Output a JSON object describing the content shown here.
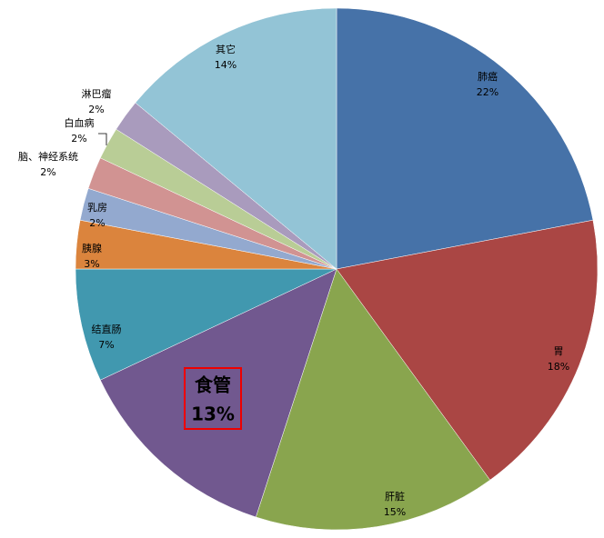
{
  "chart_data": {
    "type": "pie",
    "categories": [
      "肺癌",
      "胃",
      "肝脏",
      "食管",
      "结直肠",
      "胰腺",
      "乳房",
      "脑、神经系统",
      "白血病",
      "淋巴瘤",
      "其它"
    ],
    "values": [
      22,
      18,
      15,
      13,
      7,
      3,
      2,
      2,
      2,
      2,
      14
    ],
    "value_labels": [
      "22%",
      "18%",
      "15%",
      "13%",
      "7%",
      "3%",
      "2%",
      "2%",
      "2%",
      "2%",
      "14%"
    ],
    "colors": [
      "#4672a8",
      "#aa4644",
      "#89a54e",
      "#71588f",
      "#4198af",
      "#db843d",
      "#93a9cf",
      "#d19392",
      "#b9cd96",
      "#a99bbd",
      "#93c4d6"
    ]
  }
}
